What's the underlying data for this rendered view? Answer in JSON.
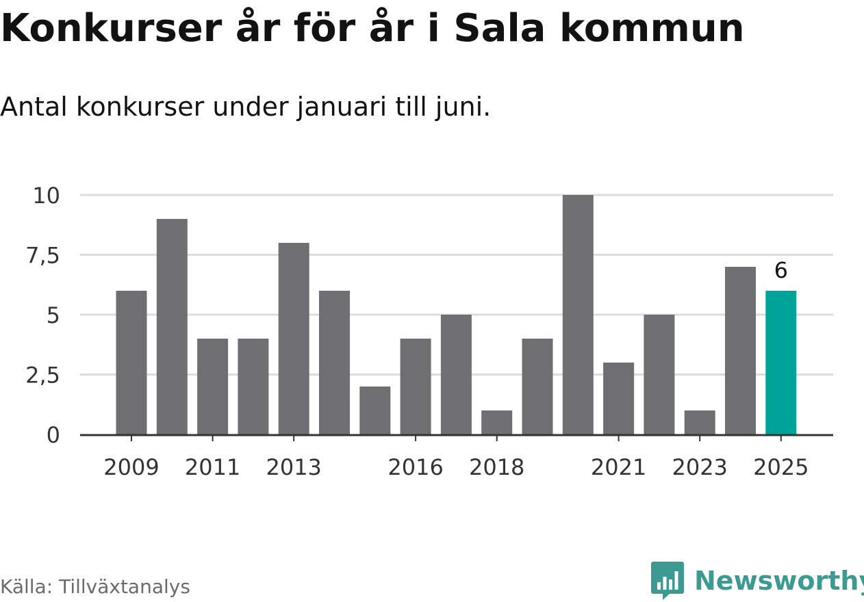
{
  "header": {
    "title": "Konkurser år för år i Sala kommun",
    "subtitle": "Antal konkurser under januari till juni."
  },
  "footer": {
    "source": "Källa: Tillväxtanalys",
    "brand": "Newsworthy",
    "brand_icon": "bar-chart-speech-bubble-icon"
  },
  "colors": {
    "bar": "#6f6e73",
    "highlight": "#00a499",
    "grid": "#dcdcdc",
    "axis": "#333333",
    "text": "#121212",
    "brand": "#3c9a92"
  },
  "chart_data": {
    "type": "bar",
    "categories": [
      "2009",
      "2010",
      "2011",
      "2012",
      "2013",
      "2014",
      "2015",
      "2016",
      "2017",
      "2018",
      "2019",
      "2020",
      "2021",
      "2022",
      "2023",
      "2024",
      "2025"
    ],
    "values": [
      6,
      9,
      4,
      4,
      8,
      6,
      2,
      4,
      5,
      1,
      4,
      10,
      3,
      5,
      1,
      7,
      6
    ],
    "x_tick_labels": [
      "2009",
      "2011",
      "2013",
      "2016",
      "2018",
      "2021",
      "2023",
      "2025"
    ],
    "y_ticks": [
      0,
      2.5,
      5,
      7.5,
      10
    ],
    "y_tick_labels": [
      "0",
      "2,5",
      "5",
      "7,5",
      "10"
    ],
    "ylim": [
      0,
      10
    ],
    "highlighted_category": "2025",
    "data_labels": [
      {
        "category": "2025",
        "text": "6"
      }
    ],
    "grid": true,
    "xlabel": "",
    "ylabel": ""
  }
}
